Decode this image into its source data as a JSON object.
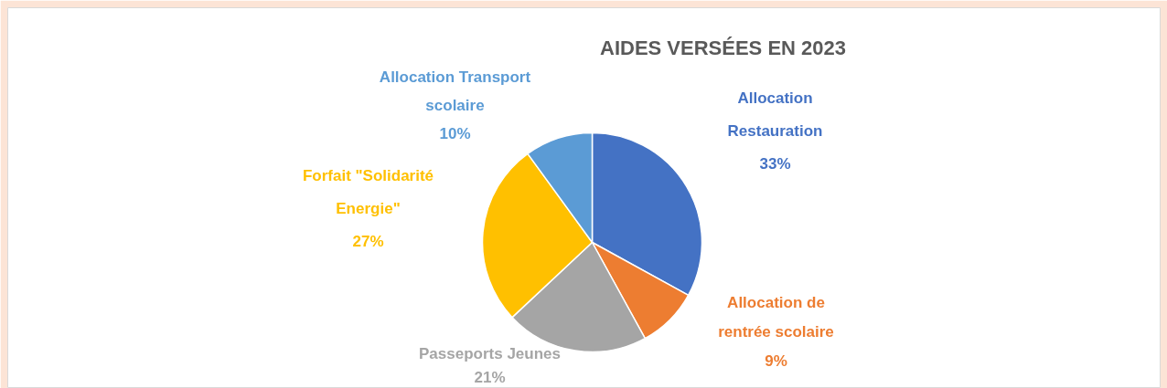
{
  "chart_data": {
    "type": "pie",
    "title": "AIDES VERSÉES EN 2023",
    "categories": [
      "Allocation Restauration",
      "Allocation de rentrée scolaire",
      "Passeports Jeunes",
      "Forfait \"Solidarité Energie\"",
      "Allocation Transport scolaire"
    ],
    "values": [
      33,
      9,
      21,
      27,
      10
    ],
    "colors": [
      "#4472c4",
      "#ed7d31",
      "#a5a5a5",
      "#ffc000",
      "#5b9bd5"
    ],
    "value_labels": [
      "33%",
      "9%",
      "21%",
      "27%",
      "10%"
    ]
  }
}
